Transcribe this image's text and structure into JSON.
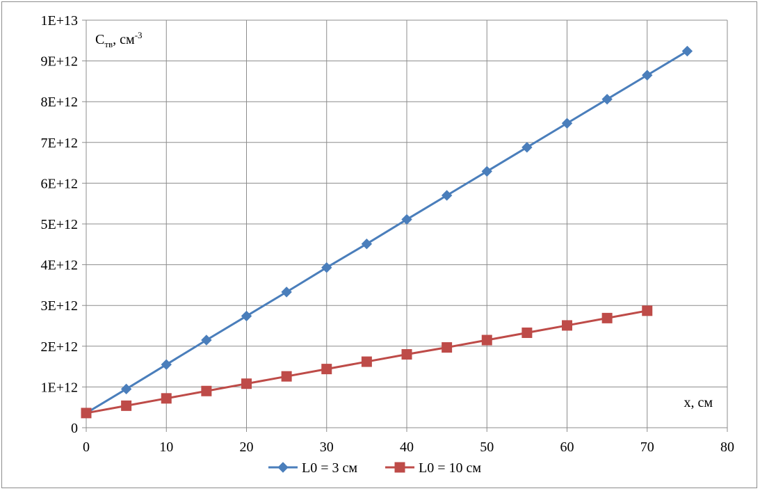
{
  "chart_data": {
    "type": "line",
    "ylabel": {
      "main": "C",
      "sub": "тв",
      "rest": ", см",
      "sup": "-3"
    },
    "xlabel": "x, см",
    "xlim": [
      0,
      80
    ],
    "ylim": [
      0,
      10000000000000.0
    ],
    "x_ticks": [
      "0",
      "10",
      "20",
      "30",
      "40",
      "50",
      "60",
      "70",
      "80"
    ],
    "y_ticks": [
      "0",
      "1E+12",
      "2E+12",
      "3E+12",
      "4E+12",
      "5E+12",
      "6E+12",
      "7E+12",
      "8E+12",
      "9E+12",
      "1E+13"
    ],
    "grid": true,
    "legend_position": "bottom",
    "series": [
      {
        "name": "L0 = 3 см",
        "color": "#4a7ebb",
        "marker": "diamond",
        "x": [
          0,
          5,
          10,
          15,
          20,
          25,
          30,
          35,
          40,
          45,
          50,
          55,
          60,
          65,
          70,
          75
        ],
        "y": [
          360000000000.0,
          950000000000.0,
          1550000000000.0,
          2150000000000.0,
          2740000000000.0,
          3330000000000.0,
          3930000000000.0,
          4510000000000.0,
          5110000000000.0,
          5700000000000.0,
          6290000000000.0,
          6880000000000.0,
          7470000000000.0,
          8060000000000.0,
          8650000000000.0,
          9240000000000.0
        ]
      },
      {
        "name": "L0 = 10 см",
        "color": "#be4b48",
        "marker": "square",
        "x": [
          0,
          5,
          10,
          15,
          20,
          25,
          30,
          35,
          40,
          45,
          50,
          55,
          60,
          65,
          70
        ],
        "y": [
          360000000000.0,
          540000000000.0,
          720000000000.0,
          900000000000.0,
          1080000000000.0,
          1260000000000.0,
          1440000000000.0,
          1620000000000.0,
          1800000000000.0,
          1970000000000.0,
          2150000000000.0,
          2330000000000.0,
          2510000000000.0,
          2690000000000.0,
          2870000000000.0
        ]
      }
    ]
  }
}
